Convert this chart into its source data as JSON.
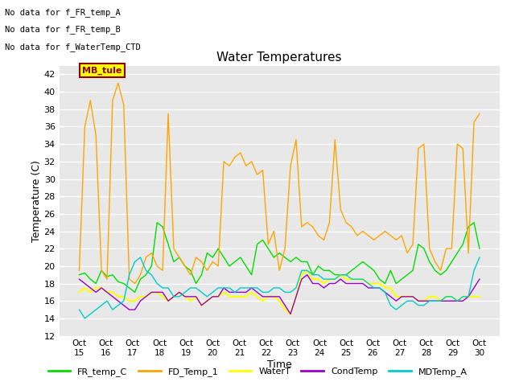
{
  "title": "Water Temperatures",
  "xlabel": "Time",
  "ylabel": "Temperature (C)",
  "ylim": [
    12,
    43
  ],
  "yticks": [
    12,
    14,
    16,
    18,
    20,
    22,
    24,
    26,
    28,
    30,
    32,
    34,
    36,
    38,
    40,
    42
  ],
  "xtick_labels": [
    "Oct 15",
    "Oct 16",
    "Oct 17",
    "Oct 18",
    "Oct 19",
    "Oct 20",
    "Oct 21",
    "Oct 22",
    "Oct 23",
    "Oct 24",
    "Oct 25",
    "Oct 26",
    "Oct 27",
    "Oct 28",
    "Oct 29",
    "Oct 30"
  ],
  "annotations": [
    "No data for f_FR_temp_A",
    "No data for f_FR_temp_B",
    "No data for f_WaterTemp_CTD"
  ],
  "mb_tule_label": "MB_tule",
  "colors": {
    "FR_temp_C": "#00DD00",
    "FD_Temp_1": "#FFA500",
    "WaterT": "#FFFF00",
    "CondTemp": "#9900CC",
    "MDTemp_A": "#00CCCC"
  },
  "background_color": "#E8E8E8",
  "grid_color": "#FFFFFF",
  "FR_temp_C": [
    19.0,
    19.2,
    18.5,
    18.0,
    19.5,
    18.8,
    19.0,
    18.2,
    18.0,
    17.5,
    17.0,
    18.5,
    19.0,
    20.0,
    25.0,
    24.5,
    22.5,
    20.5,
    21.0,
    20.0,
    19.5,
    18.0,
    19.0,
    21.5,
    21.0,
    22.0,
    21.0,
    20.0,
    20.5,
    21.0,
    20.0,
    19.0,
    22.5,
    23.0,
    22.0,
    21.0,
    21.5,
    21.0,
    20.5,
    21.0,
    20.5,
    20.5,
    19.0,
    20.0,
    19.5,
    19.5,
    19.0,
    19.0,
    19.0,
    19.5,
    20.0,
    20.5,
    20.0,
    19.5,
    18.5,
    18.0,
    19.5,
    18.0,
    18.5,
    19.0,
    19.5,
    22.5,
    22.0,
    20.5,
    19.5,
    19.0,
    19.5,
    20.5,
    21.5,
    22.5,
    24.5,
    25.0,
    22.0
  ],
  "FD_Temp_1": [
    19.5,
    36.0,
    39.0,
    35.0,
    19.5,
    18.5,
    39.0,
    41.0,
    38.5,
    18.5,
    18.0,
    19.0,
    21.0,
    21.5,
    20.0,
    19.5,
    37.5,
    22.0,
    21.0,
    20.0,
    19.0,
    21.0,
    20.5,
    19.5,
    20.5,
    20.0,
    32.0,
    31.5,
    32.5,
    33.0,
    31.5,
    32.0,
    30.5,
    31.0,
    22.5,
    24.0,
    19.5,
    22.0,
    31.5,
    34.5,
    24.5,
    25.0,
    24.5,
    23.5,
    23.0,
    25.0,
    34.5,
    26.5,
    25.0,
    24.5,
    23.5,
    24.0,
    23.5,
    23.0,
    23.5,
    24.0,
    23.5,
    23.0,
    23.5,
    21.5,
    22.5,
    33.5,
    34.0,
    22.0,
    20.5,
    19.5,
    22.0,
    22.0,
    34.0,
    33.5,
    21.5,
    36.5,
    37.5
  ],
  "WaterT": [
    17.0,
    17.5,
    17.0,
    17.5,
    17.5,
    17.0,
    17.0,
    16.5,
    16.5,
    16.0,
    16.0,
    16.5,
    16.5,
    17.0,
    17.0,
    16.5,
    16.0,
    16.5,
    17.0,
    16.5,
    16.0,
    16.5,
    15.5,
    16.0,
    16.5,
    16.5,
    17.0,
    16.5,
    16.5,
    16.5,
    16.5,
    17.0,
    16.5,
    16.0,
    16.5,
    16.5,
    16.0,
    15.0,
    14.5,
    16.5,
    19.0,
    19.5,
    18.5,
    18.5,
    18.0,
    18.5,
    18.5,
    19.0,
    18.5,
    18.5,
    18.5,
    18.5,
    18.0,
    18.0,
    18.0,
    17.5,
    17.5,
    16.5,
    16.5,
    16.5,
    16.5,
    16.0,
    16.0,
    16.5,
    16.5,
    16.0,
    16.5,
    16.5,
    16.0,
    16.5,
    16.5,
    16.5,
    16.5
  ],
  "CondTemp": [
    18.5,
    18.0,
    17.5,
    17.0,
    17.5,
    17.0,
    16.5,
    16.0,
    15.5,
    15.0,
    15.0,
    16.0,
    16.5,
    17.0,
    17.0,
    17.0,
    16.0,
    16.5,
    17.0,
    16.5,
    16.5,
    16.5,
    15.5,
    16.0,
    16.5,
    16.5,
    17.5,
    17.0,
    17.0,
    17.0,
    17.0,
    17.5,
    17.0,
    16.5,
    16.5,
    16.5,
    16.5,
    15.5,
    14.5,
    16.5,
    18.5,
    19.0,
    18.0,
    18.0,
    17.5,
    18.0,
    18.0,
    18.5,
    18.0,
    18.0,
    18.0,
    18.0,
    17.5,
    17.5,
    17.5,
    17.0,
    16.5,
    16.0,
    16.5,
    16.5,
    16.5,
    16.0,
    16.0,
    16.0,
    16.0,
    16.0,
    16.0,
    16.0,
    16.0,
    16.0,
    16.5,
    17.5,
    18.5
  ],
  "MDTemp_A": [
    15.0,
    14.0,
    14.5,
    15.0,
    15.5,
    16.0,
    15.0,
    15.5,
    16.0,
    19.0,
    20.5,
    21.0,
    19.5,
    19.0,
    18.0,
    17.5,
    17.5,
    16.5,
    16.5,
    17.0,
    17.5,
    17.5,
    17.0,
    16.5,
    17.0,
    17.5,
    17.5,
    17.5,
    17.0,
    17.5,
    17.5,
    17.5,
    17.5,
    17.0,
    17.0,
    17.5,
    17.5,
    17.0,
    17.0,
    17.5,
    19.5,
    19.5,
    19.0,
    19.0,
    18.5,
    18.5,
    18.5,
    19.0,
    19.0,
    18.5,
    18.5,
    18.5,
    18.0,
    17.5,
    17.5,
    17.0,
    15.5,
    15.0,
    15.5,
    16.0,
    16.0,
    15.5,
    15.5,
    16.0,
    16.0,
    16.0,
    16.5,
    16.5,
    16.0,
    16.5,
    16.5,
    19.5,
    21.0
  ]
}
